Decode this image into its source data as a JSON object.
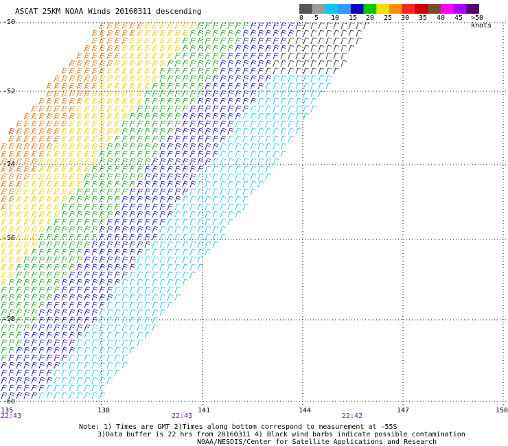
{
  "title": "ASCAT 25KM NOAA Winds 20160311 descending",
  "latitude_labels": [
    "-50",
    "-52",
    "-54",
    "-56",
    "-58",
    "-60"
  ],
  "longitude_labels": [
    "135",
    "138",
    "141",
    "144",
    "147",
    "150"
  ],
  "time_labels": [
    "22:43",
    "22:43",
    "22:42"
  ],
  "color_scale": {
    "ticks": [
      "0",
      "5",
      "10",
      "15",
      "20",
      "25",
      "30",
      "35",
      "40",
      "45",
      ">50 knots"
    ],
    "colors": [
      "#555555",
      "#9a9a9a",
      "#00c8ff",
      "#3399ff",
      "#0000cc",
      "#00cc00",
      "#f0e000",
      "#ff8c00",
      "#ff2222",
      "#cc0000",
      "#7a4a2a",
      "#ff00ff",
      "#aa00ff",
      "#550077"
    ]
  },
  "notes": [
    "Note: 1) Times are GMT 2)Times along bottom correspond to measurement at -55S",
    "3)Data buffer is 22 hrs from 20160311 4) Black wind barbs indicate possible contamination",
    "NOAA/NESDIS/Center for Satellite Applications and Research"
  ],
  "map_data": {
    "lat_range": [
      -60,
      -50
    ],
    "lon_range": [
      135,
      150
    ],
    "units": "knots",
    "bands": [
      {
        "name": "black",
        "color": "#222222",
        "speed_knots": "0-5"
      },
      {
        "name": "cyan",
        "color": "#00c8ff",
        "speed_knots": "5-10"
      },
      {
        "name": "blue",
        "color": "#0000cc",
        "speed_knots": "10-15"
      },
      {
        "name": "green",
        "color": "#00aa00",
        "speed_knots": "15-20"
      },
      {
        "name": "yellow",
        "color": "#f0d000",
        "speed_knots": "20-25"
      },
      {
        "name": "orange",
        "color": "#e07000",
        "speed_knots": "25-30"
      },
      {
        "name": "red",
        "color": "#e01010",
        "speed_knots": "30-35"
      },
      {
        "name": "brown",
        "color": "#8a5a30",
        "speed_knots": "35-40"
      }
    ]
  }
}
